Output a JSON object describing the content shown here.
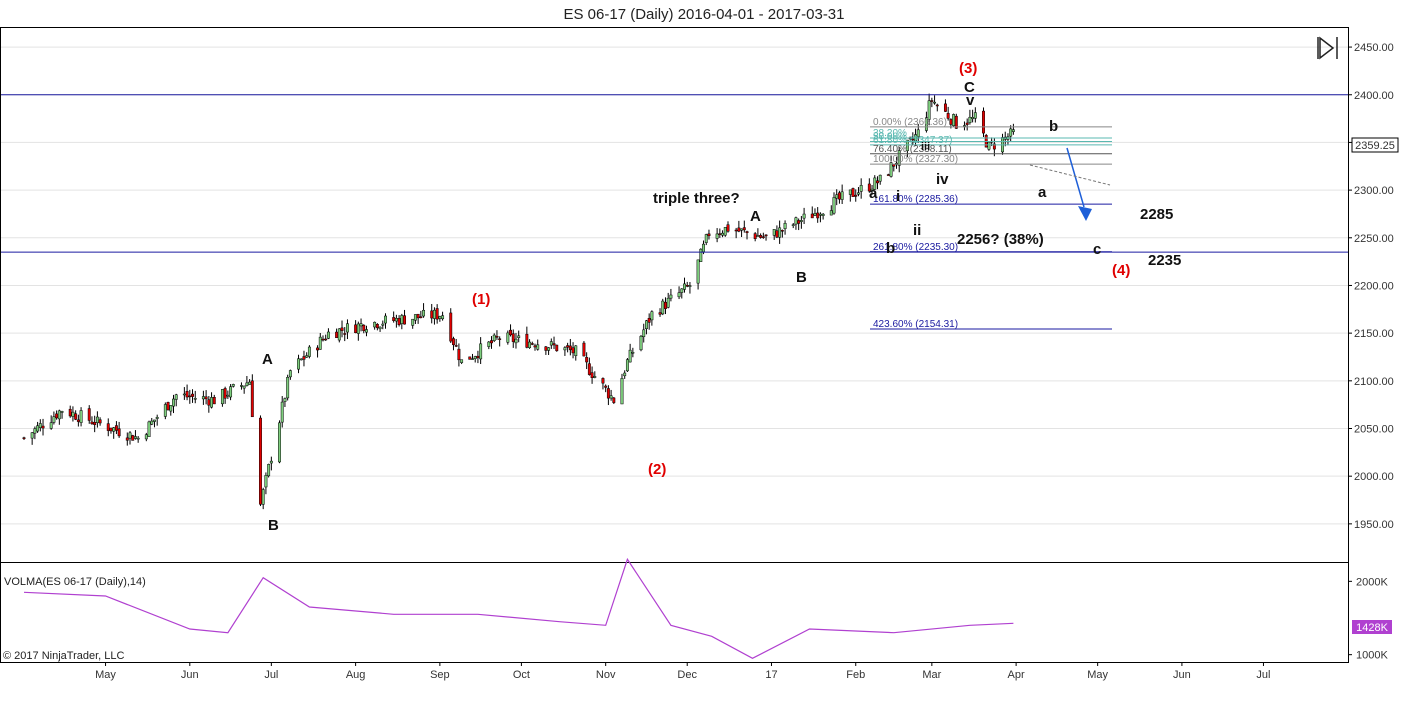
{
  "title": "ES 06-17 (Daily)  2016-04-01 - 2017-03-31",
  "copyright": "© 2017 NinjaTrader, LLC",
  "price_panel": {
    "current_price_label": "2359.25",
    "y_ticks": [
      "2450.00",
      "2400.00",
      "2350.00",
      "2300.00",
      "2250.00",
      "2200.00",
      "2150.00",
      "2100.00",
      "2050.00",
      "2000.00",
      "1950.00"
    ]
  },
  "volume_panel": {
    "label": "VOLMA(ES 06-17 (Daily),14)",
    "y_ticks": [
      "2000K",
      "1000K"
    ],
    "current_label": "1428K",
    "line_color": "#b040d0"
  },
  "x_axis": {
    "labels": [
      "May",
      "Jun",
      "Jul",
      "Aug",
      "Sep",
      "Oct",
      "Nov",
      "Dec",
      "17",
      "Feb",
      "Mar",
      "Apr",
      "May",
      "Jun",
      "Jul"
    ]
  },
  "colors": {
    "up_candle": "#7fcf7f",
    "down_candle": "#e00000",
    "horizontal_line": "#1a1aa0",
    "fib_line": "#1a1aa0",
    "forecast_arrow": "#1e5fd8",
    "red_label": "#e00000"
  },
  "fib_levels": [
    {
      "label": "0.00% (2366.36)",
      "value": 2366.36,
      "color": "#888888"
    },
    {
      "label": "38.20%",
      "value": 2354.6,
      "color": "#5ab8b0"
    },
    {
      "label": "50.00%",
      "value": 2351.0,
      "color": "#5ab8b0"
    },
    {
      "label": "61.80% (2347.37)",
      "value": 2347.37,
      "color": "#5ab8b0"
    },
    {
      "label": "76.40% (2338.11)",
      "value": 2338.11,
      "color": "#555555"
    },
    {
      "label": "100.00% (2327.30)",
      "value": 2327.3,
      "color": "#888888"
    },
    {
      "label": "161.80% (2285.36)",
      "value": 2285.36,
      "color": "#1a1aa0"
    },
    {
      "label": "261.80% (2235.30)",
      "value": 2235.3,
      "color": "#1a1aa0"
    },
    {
      "label": "423.60% (2154.31)",
      "value": 2154.31,
      "color": "#1a1aa0"
    }
  ],
  "horizontal_lines": [
    2400,
    2235
  ],
  "annotations": {
    "wave_labels_black": [
      "A",
      "B",
      "A",
      "B",
      "a",
      "b",
      "i",
      "ii",
      "iii",
      "iv",
      "C",
      "v",
      "a",
      "b",
      "c"
    ],
    "wave_labels_red": [
      "(1)",
      "(2)",
      "(3)",
      "(4)"
    ],
    "notes": [
      "triple three?",
      "2256? (38%)",
      "2285",
      "2235"
    ]
  },
  "chart_data": {
    "type": "candlestick",
    "title": "ES 06-17 (Daily)  2016-04-01 - 2017-03-31",
    "x_range": [
      "2016-04-01",
      "2017-03-31"
    ],
    "ylim": [
      1910,
      2470
    ],
    "series": [
      {
        "name": "ES 06-17 (Daily)",
        "kind": "ohlc-close-approx",
        "x": [
          "2016-04-01",
          "2016-04-15",
          "2016-04-29",
          "2016-05-13",
          "2016-05-27",
          "2016-06-10",
          "2016-06-23",
          "2016-06-27",
          "2016-07-08",
          "2016-07-22",
          "2016-08-05",
          "2016-08-19",
          "2016-09-02",
          "2016-09-09",
          "2016-09-23",
          "2016-10-07",
          "2016-10-21",
          "2016-11-04",
          "2016-11-09",
          "2016-11-18",
          "2016-12-02",
          "2016-12-09",
          "2016-12-16",
          "2016-12-30",
          "2017-01-13",
          "2017-01-26",
          "2017-02-10",
          "2017-02-24",
          "2017-03-01",
          "2017-03-10",
          "2017-03-17",
          "2017-03-22",
          "2017-03-31"
        ],
        "values": [
          2040,
          2070,
          2055,
          2040,
          2085,
          2080,
          2100,
          1970,
          2110,
          2150,
          2160,
          2165,
          2170,
          2120,
          2145,
          2140,
          2130,
          2080,
          2120,
          2170,
          2200,
          2255,
          2260,
          2250,
          2270,
          2290,
          2310,
          2360,
          2395,
          2370,
          2375,
          2345,
          2359.25
        ]
      }
    ],
    "volume_ma": {
      "name": "VOLMA(ES 06-17 (Daily),14)",
      "ylim": [
        900,
        2250
      ],
      "x": [
        "2016-04-01",
        "2016-05-01",
        "2016-06-01",
        "2016-06-15",
        "2016-06-28",
        "2016-07-15",
        "2016-08-15",
        "2016-09-15",
        "2016-10-15",
        "2016-11-01",
        "2016-11-09",
        "2016-11-25",
        "2016-12-10",
        "2016-12-25",
        "2017-01-15",
        "2017-02-15",
        "2017-03-15",
        "2017-03-31"
      ],
      "values": [
        1850,
        1800,
        1350,
        1300,
        2050,
        1650,
        1550,
        1550,
        1450,
        1400,
        2300,
        1400,
        1250,
        950,
        1350,
        1300,
        1400,
        1428
      ]
    },
    "forecast": {
      "from_value": 2359,
      "to_value": 2285,
      "target_labels": [
        "2285",
        "2235"
      ]
    }
  }
}
